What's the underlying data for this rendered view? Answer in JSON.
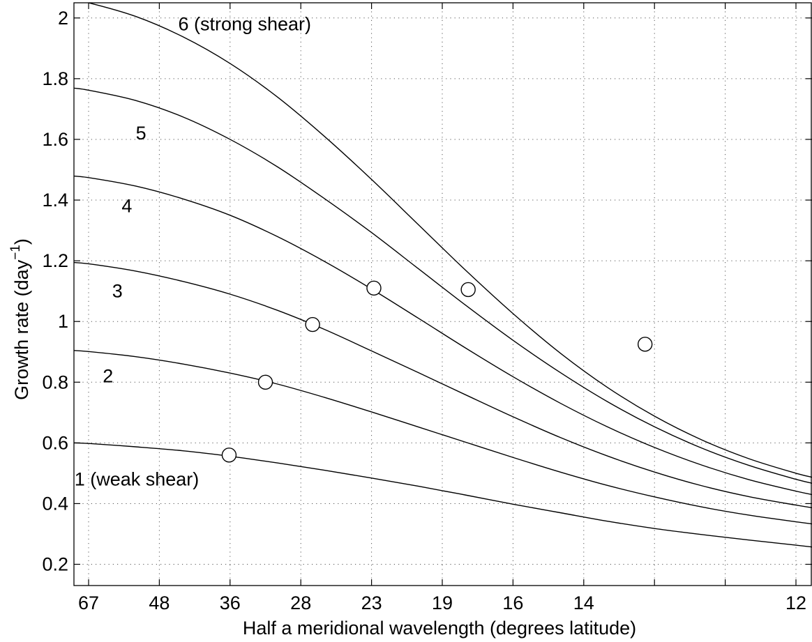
{
  "chart_data": {
    "type": "line",
    "xlabel": "Half a meridional wavelength (degrees latitude)",
    "ylabel_main": "Growth rate (day",
    "ylabel_sup": "−1",
    "ylabel_close": ")",
    "ylim": [
      0.13,
      2.05
    ],
    "xlim": [
      0.0,
      15.0
    ],
    "grid": true,
    "x_ticks": [
      {
        "x": 0.0,
        "label": "67"
      },
      {
        "x": 1.5,
        "label": "48"
      },
      {
        "x": 3.0,
        "label": "36"
      },
      {
        "x": 4.5,
        "label": "28"
      },
      {
        "x": 6.0,
        "label": "23"
      },
      {
        "x": 7.5,
        "label": "19"
      },
      {
        "x": 9.0,
        "label": "16"
      },
      {
        "x": 10.5,
        "label": "14"
      },
      {
        "x": 12.0,
        "label": ""
      },
      {
        "x": 13.5,
        "label": ""
      },
      {
        "x": 15.0,
        "label": "12"
      }
    ],
    "y_ticks": [
      {
        "y": 0.2,
        "label": "0.2"
      },
      {
        "y": 0.4,
        "label": "0.4"
      },
      {
        "y": 0.6,
        "label": "0.6"
      },
      {
        "y": 0.8,
        "label": "0.8"
      },
      {
        "y": 1.0,
        "label": "1"
      },
      {
        "y": 1.2,
        "label": "1.2"
      },
      {
        "y": 1.4,
        "label": "1.4"
      },
      {
        "y": 1.6,
        "label": "1.6"
      },
      {
        "y": 1.8,
        "label": "1.8"
      },
      {
        "y": 2.0,
        "label": "2"
      }
    ],
    "series": [
      {
        "name": "1 (weak shear)",
        "label_at": [
          -0.3,
          0.48
        ],
        "x": [
          -0.4,
          0,
          1,
          2,
          3,
          4,
          5,
          6,
          7,
          8,
          9,
          10,
          11,
          12,
          13,
          14,
          15,
          15.4
        ],
        "y": [
          0.6,
          0.598,
          0.587,
          0.574,
          0.556,
          0.534,
          0.51,
          0.484,
          0.457,
          0.428,
          0.398,
          0.37,
          0.342,
          0.318,
          0.298,
          0.28,
          0.263,
          0.256
        ]
      },
      {
        "name": "2",
        "label_at": [
          0.3,
          0.82
        ],
        "x": [
          -0.4,
          0,
          1,
          2,
          3,
          4,
          5,
          6,
          7,
          8,
          9,
          10,
          11,
          12,
          13,
          14,
          15,
          15.4
        ],
        "y": [
          0.905,
          0.901,
          0.884,
          0.86,
          0.83,
          0.794,
          0.75,
          0.702,
          0.652,
          0.602,
          0.552,
          0.504,
          0.46,
          0.422,
          0.389,
          0.362,
          0.34,
          0.332
        ]
      },
      {
        "name": "3",
        "label_at": [
          0.5,
          1.1
        ],
        "x": [
          -0.4,
          0,
          1,
          2,
          3,
          4,
          5,
          6,
          7,
          8,
          9,
          10,
          11,
          12,
          13,
          14,
          15,
          15.4
        ],
        "y": [
          1.195,
          1.19,
          1.166,
          1.132,
          1.09,
          1.037,
          0.974,
          0.903,
          0.831,
          0.758,
          0.686,
          0.618,
          0.557,
          0.504,
          0.459,
          0.423,
          0.395,
          0.385
        ]
      },
      {
        "name": "4",
        "label_at": [
          0.7,
          1.38
        ],
        "x": [
          -0.4,
          0,
          1,
          2,
          3,
          4,
          5,
          6,
          7,
          8,
          9,
          10,
          11,
          12,
          13,
          14,
          15,
          15.4
        ],
        "y": [
          1.48,
          1.474,
          1.446,
          1.404,
          1.35,
          1.28,
          1.198,
          1.107,
          1.01,
          0.912,
          0.818,
          0.731,
          0.653,
          0.585,
          0.527,
          0.479,
          0.441,
          0.428
        ]
      },
      {
        "name": "5",
        "label_at": [
          1.0,
          1.62
        ],
        "x": [
          -0.4,
          0,
          1,
          2,
          3,
          4,
          5,
          6,
          7,
          8,
          9,
          10,
          11,
          12,
          13,
          14,
          15,
          15.4
        ],
        "y": [
          1.77,
          1.762,
          1.728,
          1.674,
          1.6,
          1.51,
          1.405,
          1.293,
          1.173,
          1.053,
          0.938,
          0.832,
          0.736,
          0.653,
          0.583,
          0.526,
          0.48,
          0.465
        ]
      },
      {
        "name": "6 (strong shear)",
        "label_at": [
          1.9,
          1.98
        ],
        "x": [
          -0.4,
          0,
          1,
          2,
          3,
          4,
          5,
          6,
          7,
          8,
          9,
          10,
          11,
          12,
          13,
          14,
          15,
          15.4
        ],
        "y": [
          2.06,
          2.05,
          2.005,
          1.938,
          1.85,
          1.74,
          1.61,
          1.468,
          1.318,
          1.168,
          1.026,
          0.896,
          0.783,
          0.688,
          0.61,
          0.548,
          0.5,
          0.485
        ]
      }
    ],
    "markers": [
      {
        "x": 2.98,
        "y": 0.56
      },
      {
        "x": 3.75,
        "y": 0.8
      },
      {
        "x": 4.75,
        "y": 0.99
      },
      {
        "x": 6.05,
        "y": 1.11
      },
      {
        "x": 8.05,
        "y": 1.105
      },
      {
        "x": 11.8,
        "y": 0.925
      }
    ]
  }
}
